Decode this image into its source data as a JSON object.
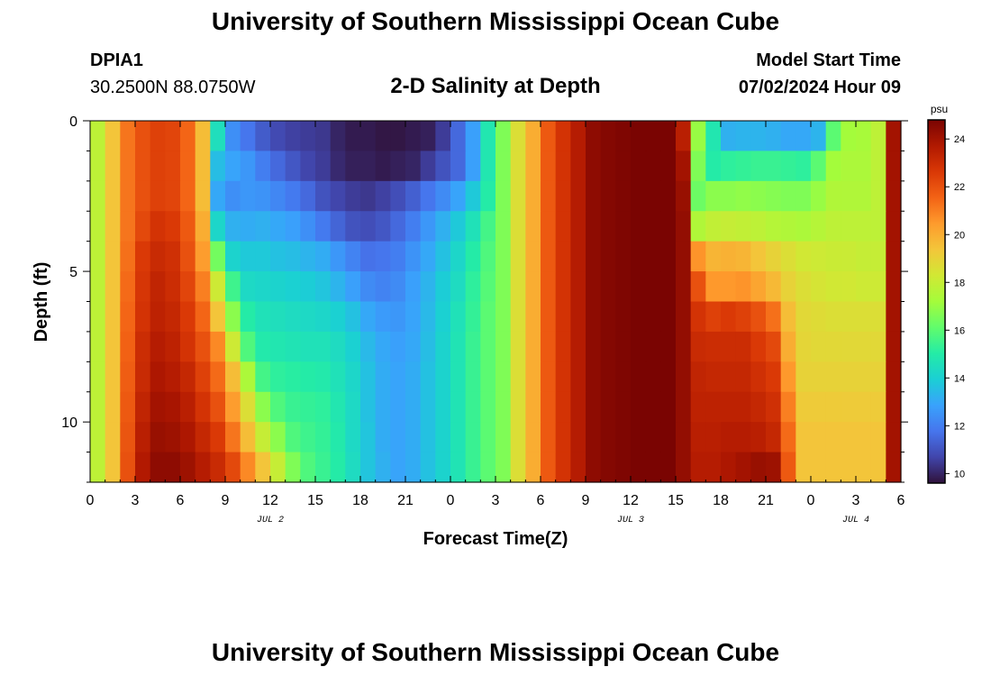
{
  "page": {
    "title_top": "University of Southern Mississippi Ocean Cube",
    "title_bottom": "University of Southern Mississippi Ocean Cube",
    "station_id": "DPIA1",
    "coordinates": "30.2500N  88.0750W",
    "plot_title": "2-D Salinity at Depth",
    "start_label": "Model Start Time",
    "start_value": "07/02/2024 Hour 09"
  },
  "chart_data": {
    "type": "heatmap",
    "title": "2-D Salinity at Depth",
    "xlabel": "Forecast Time(Z)",
    "ylabel": "Depth (ft)",
    "x_tick_labels": [
      "0",
      "3",
      "6",
      "9",
      "12",
      "15",
      "18",
      "21",
      "0",
      "3",
      "6",
      "9",
      "12",
      "15",
      "18",
      "21",
      "0",
      "3",
      "6"
    ],
    "x_range_hours": [
      0,
      54
    ],
    "date_labels": [
      {
        "text": "JUL 2",
        "hour": 12
      },
      {
        "text": "JUL 3",
        "hour": 36
      },
      {
        "text": "JUL 4",
        "hour": 51
      }
    ],
    "y_tick_labels": [
      "0",
      "5",
      "10"
    ],
    "y_range_ft": [
      0,
      12
    ],
    "colorbar": {
      "unit": "psu",
      "min": 9.6,
      "max": 24.8,
      "tick_labels": [
        "10",
        "12",
        "14",
        "16",
        "18",
        "20",
        "22",
        "24"
      ],
      "colors": [
        "#30123b",
        "#4145ab",
        "#4675ed",
        "#39a2fc",
        "#1bcfd4",
        "#24eca6",
        "#61fc6c",
        "#a4fc3b",
        "#d1e834",
        "#f3c63a",
        "#fe9b2d",
        "#f36315",
        "#d93806",
        "#b11901",
        "#7a0402"
      ]
    },
    "depth_rows_ft": [
      0.5,
      1.5,
      2.5,
      3.5,
      4.5,
      5.5,
      6.5,
      7.5,
      8.5,
      9.5,
      10.5,
      11.5
    ],
    "hourly_columns": [
      [
        17.8,
        19.4,
        21.2,
        22.0,
        22.4,
        22.3,
        21.5,
        19.6,
        14.5,
        12.4,
        11.8,
        11.2,
        10.8,
        10.6,
        10.5,
        10.4,
        10.0,
        9.8,
        9.8,
        9.7,
        9.7,
        9.8,
        9.9,
        10.5,
        11.5,
        12.8,
        14.8,
        16.6,
        18.6,
        20.0,
        21.8,
        22.8,
        23.6,
        24.4,
        24.6,
        24.7,
        24.8,
        24.8,
        24.8,
        23.5,
        17.0,
        14.8,
        13.2,
        13.3,
        13.3,
        13.2,
        13.0,
        13.0,
        13.3,
        16.0,
        17.2,
        17.3,
        17.8,
        24.0
      ],
      [
        17.8,
        19.4,
        21.2,
        22.0,
        22.4,
        22.3,
        21.5,
        19.6,
        13.5,
        12.9,
        12.6,
        12.0,
        11.5,
        11.1,
        10.7,
        10.5,
        10.1,
        9.9,
        9.9,
        9.8,
        9.9,
        10.0,
        10.5,
        11.0,
        11.5,
        12.8,
        14.8,
        16.6,
        18.6,
        20.0,
        21.8,
        22.8,
        23.6,
        24.4,
        24.6,
        24.7,
        24.8,
        24.8,
        24.8,
        24.0,
        16.6,
        15.0,
        15.2,
        15.3,
        15.4,
        15.4,
        15.3,
        15.2,
        16.0,
        17.2,
        17.4,
        17.4,
        17.8,
        24.0
      ],
      [
        17.8,
        19.4,
        21.2,
        22.0,
        22.4,
        22.3,
        21.5,
        19.6,
        13.0,
        12.4,
        12.6,
        12.5,
        12.2,
        11.9,
        11.5,
        11.0,
        10.7,
        10.5,
        10.4,
        10.6,
        10.9,
        11.3,
        11.8,
        12.3,
        12.9,
        13.8,
        15.0,
        16.6,
        18.6,
        20.0,
        21.8,
        22.8,
        23.6,
        24.4,
        24.6,
        24.7,
        24.8,
        24.8,
        24.8,
        24.2,
        16.3,
        16.8,
        16.8,
        16.9,
        16.8,
        16.7,
        16.6,
        16.6,
        17.0,
        17.5,
        17.5,
        17.5,
        17.8,
        24.0
      ],
      [
        17.8,
        19.4,
        21.2,
        22.2,
        22.8,
        22.6,
        21.8,
        20.0,
        14.2,
        13.2,
        13.1,
        13.2,
        13.0,
        12.8,
        12.4,
        11.9,
        11.4,
        11.0,
        10.9,
        11.1,
        11.5,
        12.0,
        12.6,
        13.2,
        13.8,
        14.6,
        15.6,
        16.6,
        18.6,
        20.0,
        21.8,
        22.8,
        23.6,
        24.4,
        24.6,
        24.7,
        24.8,
        24.8,
        24.8,
        24.3,
        17.5,
        17.9,
        18.0,
        17.9,
        17.8,
        17.6,
        17.5,
        17.4,
        17.6,
        17.8,
        17.8,
        17.8,
        17.8,
        24.0
      ],
      [
        17.8,
        19.4,
        21.3,
        22.6,
        23.1,
        22.9,
        22.0,
        20.4,
        16.4,
        14.1,
        13.8,
        13.8,
        13.6,
        13.5,
        13.3,
        13.1,
        12.6,
        12.1,
        11.7,
        11.8,
        12.0,
        12.5,
        13.0,
        13.6,
        14.2,
        15.0,
        15.8,
        16.6,
        18.6,
        20.0,
        21.8,
        22.8,
        23.6,
        24.4,
        24.6,
        24.7,
        24.8,
        24.8,
        24.8,
        24.3,
        20.6,
        19.8,
        19.9,
        19.8,
        19.4,
        19.0,
        18.6,
        18.3,
        18.2,
        18.1,
        18.1,
        18.0,
        18.0,
        24.0
      ],
      [
        17.8,
        19.4,
        21.4,
        22.7,
        23.3,
        23.0,
        22.3,
        21.0,
        18.2,
        15.5,
        14.3,
        14.2,
        14.1,
        14.0,
        13.9,
        13.7,
        13.3,
        12.8,
        12.3,
        12.1,
        12.3,
        12.8,
        13.3,
        13.9,
        14.4,
        15.2,
        15.9,
        16.6,
        18.6,
        20.0,
        21.8,
        22.8,
        23.6,
        24.4,
        24.6,
        24.7,
        24.8,
        24.8,
        24.8,
        24.3,
        22.0,
        20.5,
        20.5,
        20.6,
        20.2,
        19.7,
        19.0,
        18.6,
        18.4,
        18.3,
        18.3,
        18.2,
        18.2,
        24.0
      ],
      [
        17.8,
        19.4,
        21.5,
        22.8,
        23.4,
        23.2,
        22.6,
        21.5,
        19.4,
        16.8,
        15.0,
        14.6,
        14.5,
        14.4,
        14.3,
        14.2,
        14.0,
        13.6,
        13.0,
        12.7,
        12.6,
        12.9,
        13.4,
        14.0,
        14.6,
        15.3,
        16.0,
        16.6,
        18.6,
        20.0,
        21.8,
        22.8,
        23.6,
        24.4,
        24.6,
        24.7,
        24.8,
        24.8,
        24.8,
        24.3,
        22.8,
        22.4,
        22.6,
        22.4,
        22.0,
        21.3,
        19.6,
        18.8,
        18.7,
        18.6,
        18.6,
        18.6,
        18.6,
        24.0
      ],
      [
        17.8,
        19.4,
        21.6,
        23.0,
        23.6,
        23.4,
        22.8,
        22.0,
        20.8,
        18.2,
        15.8,
        14.9,
        14.8,
        14.7,
        14.6,
        14.6,
        14.4,
        14.0,
        13.4,
        13.0,
        12.8,
        13.0,
        13.5,
        14.1,
        14.7,
        15.4,
        16.0,
        16.6,
        18.6,
        20.0,
        21.8,
        22.8,
        23.6,
        24.4,
        24.6,
        24.7,
        24.8,
        24.8,
        24.8,
        24.3,
        23.1,
        23.0,
        23.0,
        23.0,
        22.6,
        22.2,
        20.0,
        18.9,
        18.8,
        18.8,
        18.8,
        18.8,
        18.8,
        24.0
      ],
      [
        17.8,
        19.4,
        21.7,
        23.1,
        23.8,
        23.6,
        23.2,
        22.4,
        21.4,
        19.6,
        17.4,
        15.6,
        15.2,
        15.1,
        15.0,
        14.9,
        14.6,
        14.2,
        13.6,
        13.1,
        12.9,
        13.1,
        13.6,
        14.1,
        14.7,
        15.4,
        16.0,
        16.6,
        18.6,
        20.0,
        21.8,
        22.8,
        23.6,
        24.4,
        24.6,
        24.7,
        24.8,
        24.8,
        24.8,
        24.3,
        23.3,
        23.2,
        23.2,
        23.2,
        22.9,
        22.6,
        20.5,
        19.0,
        19.0,
        19.0,
        19.0,
        19.0,
        19.0,
        24.0
      ],
      [
        17.8,
        19.4,
        21.8,
        23.3,
        24.0,
        23.9,
        23.5,
        22.8,
        22.0,
        20.4,
        18.6,
        16.8,
        15.8,
        15.4,
        15.3,
        15.2,
        14.8,
        14.3,
        13.6,
        13.1,
        12.9,
        13.1,
        13.6,
        14.1,
        14.7,
        15.4,
        16.0,
        16.6,
        18.6,
        20.0,
        21.8,
        22.8,
        23.6,
        24.4,
        24.6,
        24.7,
        24.8,
        24.8,
        24.8,
        24.3,
        23.4,
        23.4,
        23.4,
        23.4,
        23.2,
        22.9,
        21.0,
        19.2,
        19.2,
        19.2,
        19.2,
        19.2,
        19.2,
        24.0
      ],
      [
        17.8,
        19.4,
        21.9,
        23.5,
        24.2,
        24.1,
        23.8,
        23.2,
        22.6,
        21.2,
        19.6,
        18.0,
        16.8,
        15.8,
        15.5,
        15.3,
        14.9,
        14.3,
        13.7,
        13.1,
        12.9,
        13.1,
        13.6,
        14.1,
        14.7,
        15.4,
        16.0,
        16.6,
        18.6,
        20.0,
        21.8,
        22.8,
        23.6,
        24.4,
        24.6,
        24.7,
        24.8,
        24.8,
        24.8,
        24.3,
        23.5,
        23.5,
        23.6,
        23.6,
        23.5,
        23.2,
        21.4,
        19.4,
        19.4,
        19.4,
        19.4,
        19.4,
        19.4,
        24.0
      ],
      [
        17.8,
        19.4,
        22.0,
        23.7,
        24.4,
        24.4,
        24.1,
        23.6,
        23.1,
        22.2,
        20.8,
        19.4,
        18.0,
        16.6,
        15.8,
        15.4,
        15.0,
        14.4,
        13.7,
        13.2,
        12.9,
        13.1,
        13.6,
        14.1,
        14.7,
        15.4,
        16.0,
        16.6,
        18.6,
        20.0,
        21.8,
        22.8,
        23.6,
        24.4,
        24.6,
        24.7,
        24.8,
        24.8,
        24.8,
        24.3,
        23.6,
        23.6,
        23.8,
        24.0,
        24.2,
        24.1,
        21.8,
        19.4,
        19.4,
        19.4,
        19.4,
        19.4,
        19.4,
        24.0
      ]
    ]
  }
}
